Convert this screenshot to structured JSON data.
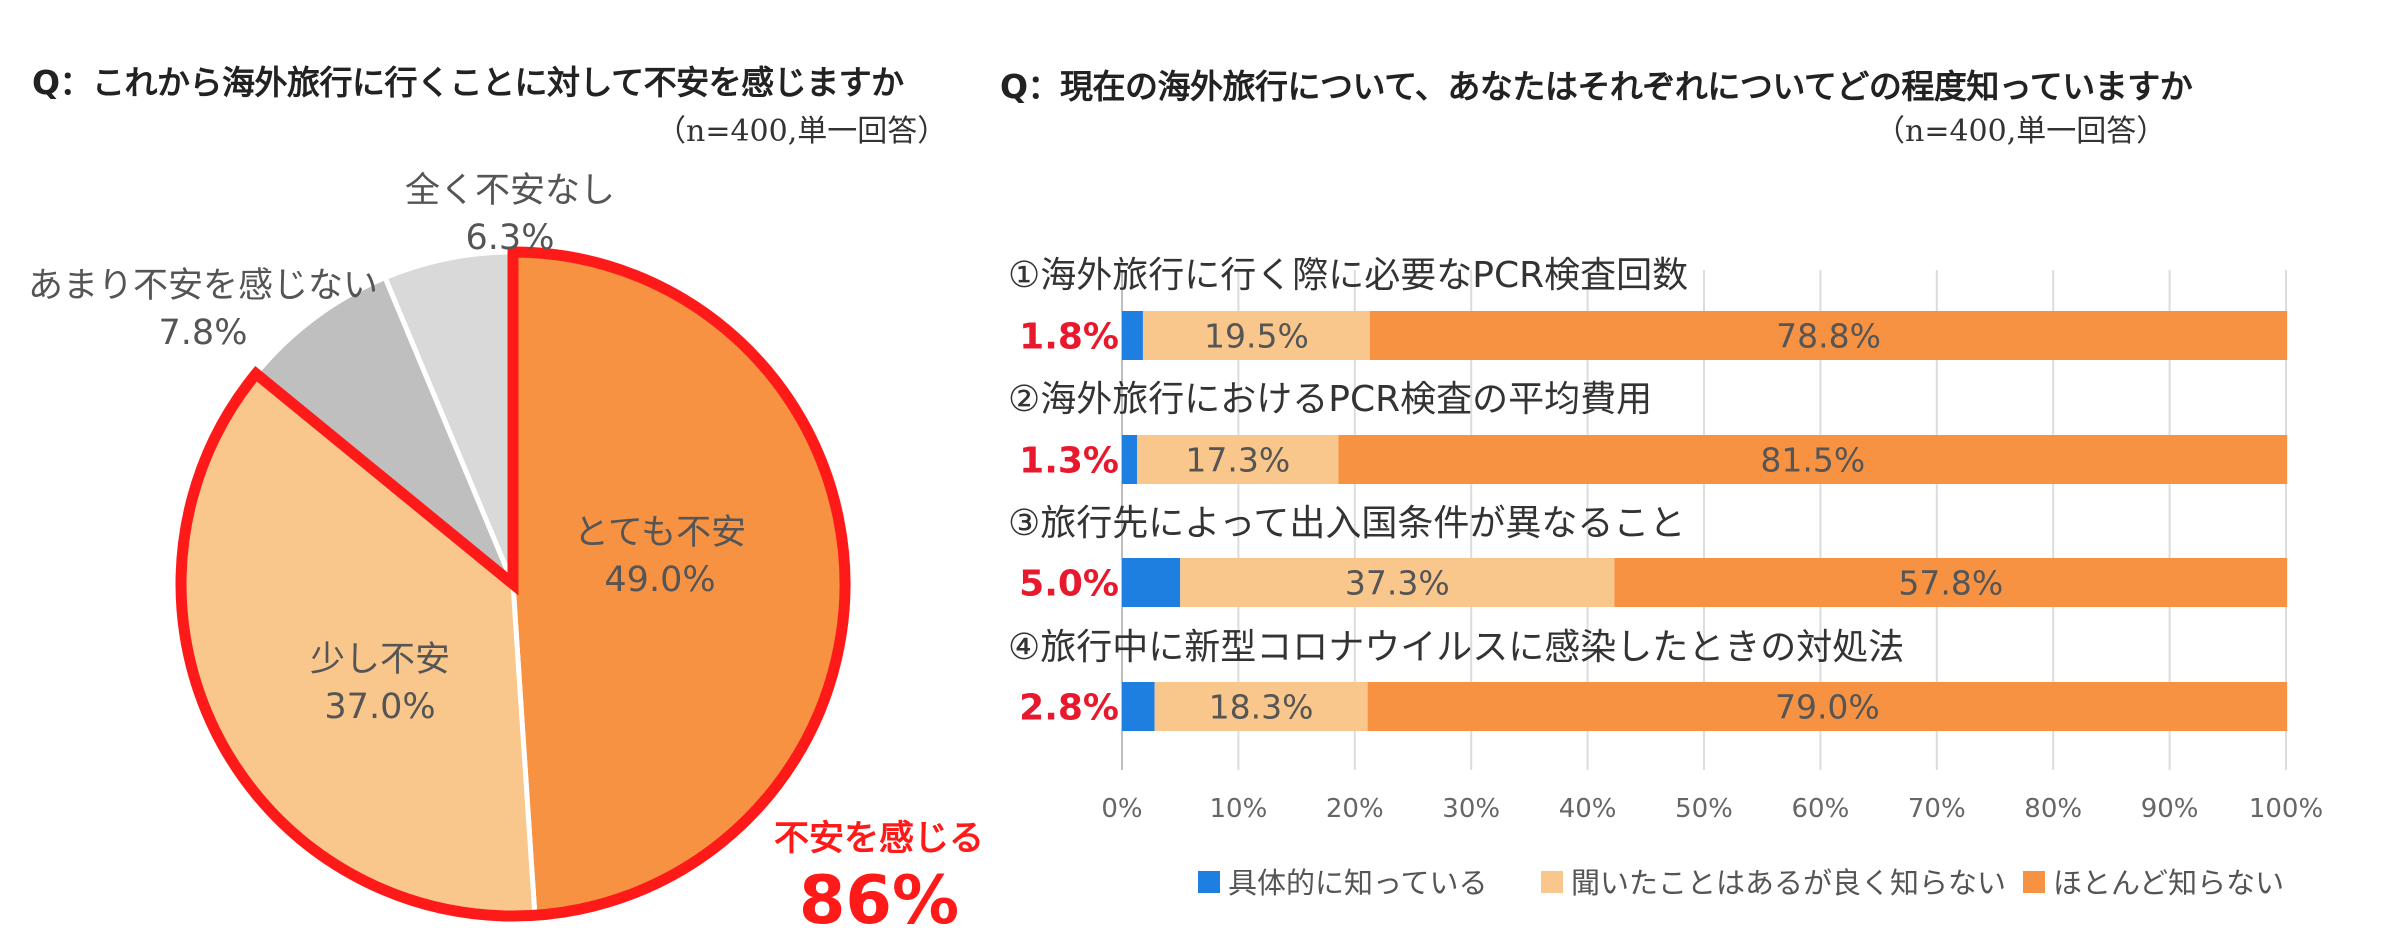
{
  "left": {
    "title": "Q：これから海外旅行に行くことに対して不安を感じますか",
    "note": "（n=400,単一回答）"
  },
  "right": {
    "title": "Q：現在の海外旅行について、あなたはそれぞれについてどの程度知っていますか",
    "note": "（n=400,単一回答）"
  },
  "chart_data": [
    {
      "type": "pie",
      "slices": [
        {
          "label": "とても不安",
          "value": 49.0,
          "value_label": "49.0%",
          "color": "#f79243"
        },
        {
          "label": "少し不安",
          "value": 37.0,
          "value_label": "37.0%",
          "color": "#f9c68b"
        },
        {
          "label": "あまり不安を感じない",
          "value": 7.8,
          "value_label": "7.8%",
          "color": "#bfbfbf"
        },
        {
          "label": "全く不安なし",
          "value": 6.3,
          "value_label": "6.3%",
          "color": "#d9d9d9"
        }
      ],
      "highlight_outline_color": "#ff1a1a",
      "callout": {
        "label": "不安を感じる",
        "value": "86%"
      }
    },
    {
      "type": "bar",
      "orientation": "horizontal",
      "stacked": true,
      "categories": [
        "①海外旅行に行く際に必要なPCR検査回数",
        "②海外旅行におけるPCR検査の平均費用",
        "③旅行先によって出入国条件が異なること",
        "④旅行中に新型コロナウイルスに感染したときの対処法"
      ],
      "series": [
        {
          "name": "具体的に知っている",
          "color": "#1f7fe0",
          "values": [
            1.8,
            1.3,
            5.0,
            2.8
          ],
          "labels": [
            "1.8%",
            "1.3%",
            "5.0%",
            "2.8%"
          ]
        },
        {
          "name": "聞いたことはあるが良く知らない",
          "color": "#f9c68b",
          "values": [
            19.5,
            17.3,
            37.3,
            18.3
          ],
          "labels": [
            "19.5%",
            "17.3%",
            "37.3%",
            "18.3%"
          ]
        },
        {
          "name": "ほとんど知らない",
          "color": "#f79243",
          "values": [
            78.8,
            81.5,
            57.8,
            79.0
          ],
          "labels": [
            "78.8%",
            "81.5%",
            "57.8%",
            "79.0%"
          ]
        }
      ],
      "xlim": [
        0,
        100
      ],
      "ticks": [
        "0%",
        "10%",
        "20%",
        "30%",
        "40%",
        "50%",
        "60%",
        "70%",
        "80%",
        "90%",
        "100%"
      ],
      "grid": true,
      "legend_position": "bottom"
    }
  ]
}
